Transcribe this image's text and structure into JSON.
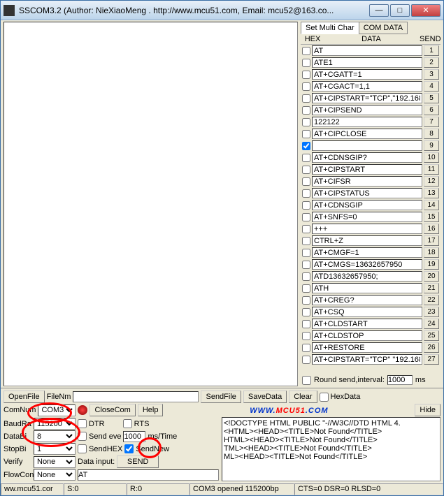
{
  "window": {
    "title": "SSCOM3.2 (Author: NieXiaoMeng .  http://www.mcu51.com,  Email: mcu52@163.co..."
  },
  "macros": {
    "tabs": [
      "Set Multi Char",
      "COM DATA"
    ],
    "headers": {
      "hex": "HEX",
      "data": "DATA",
      "send": "SEND"
    },
    "rows": [
      {
        "chk": false,
        "cmd": "AT",
        "n": "1"
      },
      {
        "chk": false,
        "cmd": "ATE1",
        "n": "2"
      },
      {
        "chk": false,
        "cmd": "AT+CGATT=1",
        "n": "3"
      },
      {
        "chk": false,
        "cmd": "AT+CGACT=1,1",
        "n": "4"
      },
      {
        "chk": false,
        "cmd": "AT+CIPSTART=\"TCP\",\"192.168.",
        "n": "5"
      },
      {
        "chk": false,
        "cmd": "AT+CIPSEND",
        "n": "6"
      },
      {
        "chk": false,
        "cmd": "122122",
        "n": "7"
      },
      {
        "chk": false,
        "cmd": "AT+CIPCLOSE",
        "n": "8"
      },
      {
        "chk": true,
        "cmd": "",
        "n": "9"
      },
      {
        "chk": false,
        "cmd": "AT+CDNSGIP?",
        "n": "10"
      },
      {
        "chk": false,
        "cmd": "AT+CIPSTART",
        "n": "11"
      },
      {
        "chk": false,
        "cmd": "AT+CIFSR",
        "n": "12"
      },
      {
        "chk": false,
        "cmd": "AT+CIPSTATUS",
        "n": "13"
      },
      {
        "chk": false,
        "cmd": "AT+CDNSGIP",
        "n": "14"
      },
      {
        "chk": false,
        "cmd": "AT+SNFS=0",
        "n": "15"
      },
      {
        "chk": false,
        "cmd": "+++",
        "n": "16"
      },
      {
        "chk": false,
        "cmd": "CTRL+Z",
        "n": "17"
      },
      {
        "chk": false,
        "cmd": "AT+CMGF=1",
        "n": "18"
      },
      {
        "chk": false,
        "cmd": "AT+CMGS=13632657950",
        "n": "19"
      },
      {
        "chk": false,
        "cmd": "ATD13632657950;",
        "n": "20"
      },
      {
        "chk": false,
        "cmd": "ATH",
        "n": "21"
      },
      {
        "chk": false,
        "cmd": "AT+CREG?",
        "n": "22"
      },
      {
        "chk": false,
        "cmd": "AT+CSQ",
        "n": "23"
      },
      {
        "chk": false,
        "cmd": "AT+CLDSTART",
        "n": "24"
      },
      {
        "chk": false,
        "cmd": "AT+CLDSTOP",
        "n": "25"
      },
      {
        "chk": false,
        "cmd": "AT+RESTORE",
        "n": "26"
      },
      {
        "chk": false,
        "cmd": "AT+CIPSTART=\"TCP\" \"192.168",
        "n": "27"
      }
    ],
    "round_send_label": "Round send,interval:",
    "round_send_value": "1000",
    "round_send_unit": "ms"
  },
  "controls": {
    "openfile_label": "OpenFile",
    "filenm_label": "FileNm",
    "sendfile": "SendFile",
    "savedata": "SaveData",
    "clear": "Clear",
    "hexdata": "HexData",
    "comnum_label": "ComNum",
    "comnum_value": "COM3",
    "closecom": "CloseCom",
    "help": "Help",
    "hide": "Hide",
    "link_www": "WWW.",
    "link_mcu51": "MCU51",
    "link_com": ".COM",
    "baudrate_label": "BaudRa",
    "baudrate_value": "115200",
    "databits_label": "DataBi",
    "databits_value": "8",
    "stopbits_label": "StopBi",
    "stopbits_value": "1",
    "verify_label": "Verify",
    "verify_value": "None",
    "flowcon_label": "FlowCon",
    "flowcon_value": "None",
    "dtr": "DTR",
    "rts": "RTS",
    "sendeve_label": "Send eve",
    "sendeve_value": "1000",
    "sendeve_unit": "ms/Time",
    "sendhex": "SendHEX",
    "sendnew": "SendNew",
    "datainput_label": "Data input:",
    "send_btn": "SEND",
    "datainput_value": "AT"
  },
  "response": {
    "lines": [
      "<!DOCTYPE HTML PUBLIC \"-//W3C//DTD HTML 4.",
      "<HTML><HEAD><TITLE>Not Found</TITLE>",
      "HTML><HEAD><TITLE>Not Found</TITLE>",
      "TML><HEAD><TITLE>Not Found</TITLE>",
      "ML><HEAD><TITLE>Not Found</TITLE>"
    ]
  },
  "statusbar": {
    "url": "ww.mcu51.cor",
    "s": "S:0",
    "r": "R:0",
    "port": "COM3 opened 115200bp",
    "flags": "CTS=0 DSR=0 RLSD=0"
  }
}
